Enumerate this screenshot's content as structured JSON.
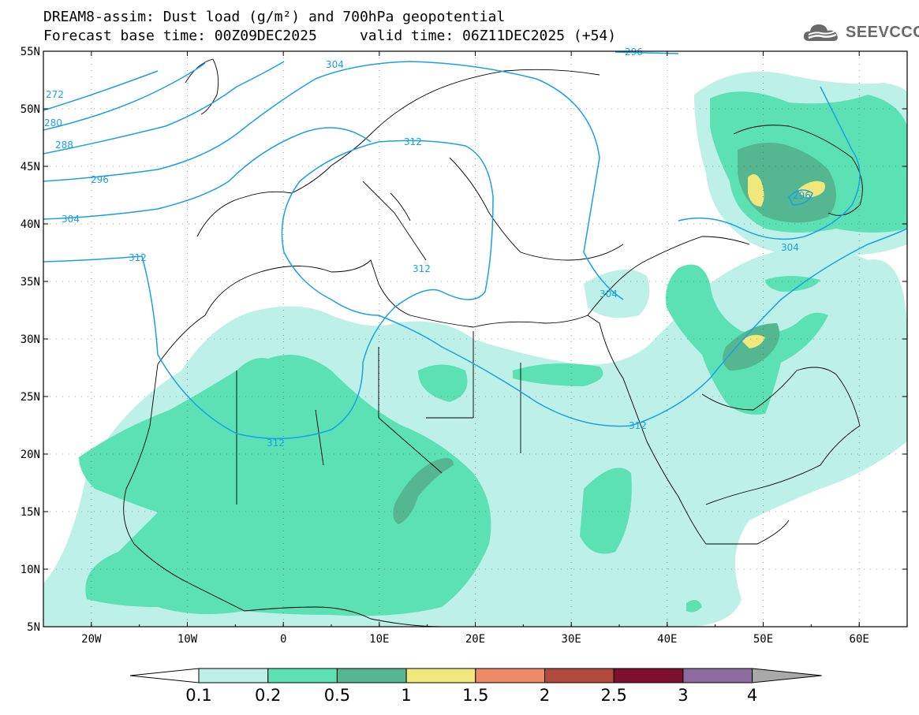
{
  "title": {
    "line1": "DREAM8-assim: Dust load (g/m²) and 700hPa geopotential",
    "line2": "Forecast base time: 00Z09DEC2025     valid time: 06Z11DEC2025 (+54)"
  },
  "logo": {
    "icon": "cloud-icon",
    "text": "SEEVCCC"
  },
  "map": {
    "lat_labels": [
      "55N",
      "50N",
      "45N",
      "40N",
      "35N",
      "30N",
      "25N",
      "20N",
      "15N",
      "10N",
      "5N"
    ],
    "lon_labels": [
      "20W",
      "10W",
      "0",
      "10E",
      "20E",
      "30E",
      "40E",
      "50E",
      "60E"
    ],
    "contour_labels": [
      "272",
      "280",
      "288",
      "296",
      "304",
      "312",
      "312",
      "312",
      "312",
      "312",
      "304",
      "304",
      "296",
      "304",
      "296"
    ],
    "colors": {
      "contour": "#1aa0e6",
      "coast": "#000000"
    }
  },
  "colorbar": {
    "labels": [
      "0.1",
      "0.2",
      "0.5",
      "1",
      "1.5",
      "2",
      "2.5",
      "3",
      "4"
    ],
    "colors": [
      "#ffffff",
      "#bdf0e6",
      "#5ce1b5",
      "#55b792",
      "#f0e87a",
      "#eb8c66",
      "#b14b3e",
      "#7e0f2e",
      "#8e6b9e",
      "#a9a9a9"
    ]
  }
}
